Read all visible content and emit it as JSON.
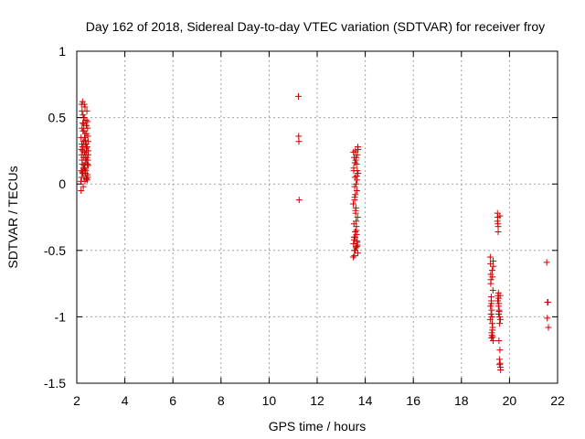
{
  "chart_data": {
    "type": "scatter",
    "title": "Day 162 of 2018, Sidereal Day-to-day VTEC variation (SDTVAR) for receiver froy",
    "xlabel": "GPS time / hours",
    "ylabel": "SDTVAR / TECUs",
    "xlim": [
      2,
      22
    ],
    "ylim": [
      -1.5,
      1
    ],
    "xticks": [
      2,
      4,
      6,
      8,
      10,
      12,
      14,
      16,
      18,
      20,
      22
    ],
    "yticks": [
      -1.5,
      -1,
      -0.5,
      0,
      0.5,
      1
    ],
    "xtick_labels": [
      "2",
      "4",
      "6",
      "8",
      "10",
      "12",
      "14",
      "16",
      "18",
      "20",
      "22"
    ],
    "ytick_labels": [
      "-1.5",
      "-1",
      "-0.5",
      "0",
      "0.5",
      "1"
    ],
    "grid": true,
    "marker": "+",
    "color": "#cc0000",
    "series": [
      {
        "x": [
          2.17,
          2.18,
          2.19,
          2.2,
          2.21,
          2.22,
          2.23,
          2.24,
          2.25,
          2.26,
          2.27,
          2.28,
          2.29,
          2.3,
          2.31,
          2.32,
          2.33,
          2.34,
          2.35,
          2.36,
          2.37,
          2.38,
          2.39,
          2.4,
          2.41,
          2.42,
          2.43,
          2.44,
          2.45,
          2.46,
          2.47,
          2.48,
          2.18,
          2.2,
          2.22,
          2.24,
          2.26,
          2.28,
          2.3,
          2.32,
          2.34,
          2.36,
          2.38,
          2.4,
          2.42,
          2.44,
          2.46,
          2.48,
          2.19,
          2.23,
          2.27,
          2.31,
          2.35,
          2.39,
          2.43,
          2.47,
          2.2,
          2.25,
          2.3,
          2.35,
          2.4,
          2.45,
          2.25,
          2.3,
          2.35,
          2.22,
          2.28,
          2.34,
          2.4,
          2.46,
          11.22,
          11.23,
          11.24,
          11.25,
          13.5,
          13.51,
          13.52,
          13.53,
          13.54,
          13.55,
          13.56,
          13.57,
          13.58,
          13.59,
          13.6,
          13.61,
          13.62,
          13.63,
          13.64,
          13.65,
          13.66,
          13.67,
          13.68,
          13.69,
          13.7,
          13.5,
          13.52,
          13.54,
          13.56,
          13.58,
          13.6,
          13.62,
          13.64,
          13.66,
          13.68,
          13.7,
          13.51,
          13.55,
          13.59,
          13.63,
          13.67,
          13.53,
          13.57,
          13.61,
          13.65,
          13.69,
          13.56,
          13.6,
          13.64,
          13.58,
          13.62,
          13.66,
          19.2,
          19.21,
          19.22,
          19.23,
          19.24,
          19.25,
          19.26,
          19.27,
          19.28,
          19.29,
          19.3,
          19.31,
          19.32,
          19.33,
          19.2,
          19.22,
          19.24,
          19.26,
          19.28,
          19.3,
          19.32,
          19.21,
          19.25,
          19.29,
          19.23,
          19.27,
          19.5,
          19.51,
          19.52,
          19.53,
          19.54,
          19.55,
          19.56,
          19.57,
          19.58,
          19.59,
          19.6,
          19.61,
          19.62,
          19.63,
          19.5,
          19.52,
          19.54,
          19.56,
          19.58,
          19.6,
          19.62,
          19.51,
          19.55,
          19.59,
          19.53,
          19.57,
          19.61,
          21.55,
          21.6,
          21.57,
          21.62,
          21.58
        ],
        "y": [
          0.02,
          -0.05,
          0.1,
          0.6,
          0.3,
          0.55,
          0.15,
          0.62,
          0.25,
          0.4,
          -0.02,
          0.2,
          0.45,
          0.05,
          0.5,
          0.35,
          0.12,
          0.58,
          0.22,
          0.08,
          0.3,
          0.48,
          0.18,
          0.04,
          0.38,
          0.55,
          0.28,
          0.15,
          0.42,
          0.05,
          0.32,
          0.25,
          0.35,
          0.05,
          0.18,
          0.28,
          0.52,
          0.12,
          0.4,
          0.24,
          0.02,
          0.33,
          0.1,
          0.44,
          0.2,
          0.07,
          0.36,
          0.14,
          0.26,
          0.09,
          0.32,
          0.6,
          0.16,
          0.3,
          0.03,
          0.22,
          0.22,
          0.46,
          0.14,
          0.38,
          0.27,
          0.47,
          0.08,
          0.3,
          0.2,
          0.42,
          0.5,
          0.11,
          0.25,
          0.18,
          0.66,
          0.36,
          0.32,
          -0.12,
          -0.55,
          -0.45,
          0.1,
          -0.3,
          0.2,
          -0.5,
          -0.1,
          0.05,
          -0.4,
          0.25,
          -0.2,
          -0.48,
          0.0,
          -0.35,
          0.15,
          -0.05,
          -0.43,
          0.22,
          -0.25,
          -0.52,
          0.08,
          -0.15,
          0.12,
          -0.42,
          -0.02,
          -0.5,
          0.18,
          -0.28,
          -0.38,
          0.03,
          -0.46,
          0.26,
          0.24,
          -0.54,
          -0.08,
          -0.32,
          0.1,
          -0.4,
          0.16,
          -0.18,
          -0.47,
          0.28,
          -0.12,
          -0.22,
          0.06,
          -0.36,
          0.2,
          -0.44,
          -0.55,
          -0.6,
          -0.68,
          -0.72,
          -0.85,
          -0.9,
          -0.95,
          -1.0,
          -1.05,
          -1.1,
          -1.15,
          -0.8,
          -1.18,
          -0.62,
          -1.02,
          -0.75,
          -0.88,
          -1.12,
          -0.65,
          -1.08,
          -0.58,
          -0.92,
          -1.16,
          -0.7,
          -0.98,
          -1.14,
          -0.22,
          -0.25,
          -0.3,
          -0.36,
          -0.82,
          -0.86,
          -0.9,
          -0.95,
          -1.0,
          -1.05,
          -1.25,
          -1.35,
          -1.38,
          -1.4,
          -0.28,
          -0.84,
          -0.92,
          -1.18,
          -1.32,
          -0.24,
          -1.02,
          -0.88,
          -0.98,
          -1.36,
          -0.32,
          -0.96,
          -0.84,
          -0.59,
          -0.89,
          -1.01,
          -1.08,
          -0.89
        ]
      }
    ]
  }
}
